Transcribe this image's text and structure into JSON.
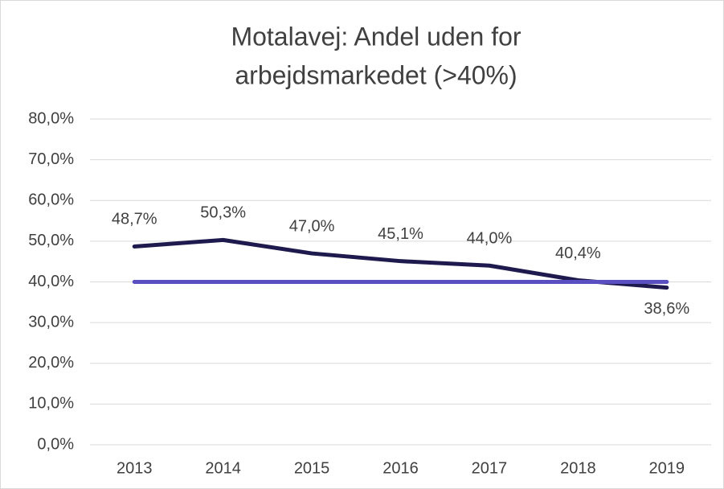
{
  "chart_data": {
    "type": "line",
    "title": [
      "Motalavej: Andel uden for",
      "arbejdsmarkedet (>40%)"
    ],
    "categories": [
      "2013",
      "2014",
      "2015",
      "2016",
      "2017",
      "2018",
      "2019"
    ],
    "series": [
      {
        "color": "#1f1a4d",
        "values": [
          48.7,
          50.3,
          47.0,
          45.1,
          44.0,
          40.4,
          38.6
        ],
        "value_labels": [
          "48,7%",
          "50,3%",
          "47,0%",
          "45,1%",
          "44,0%",
          "40,4%",
          "38,6%"
        ]
      },
      {
        "color": "#5a4fc0",
        "values": [
          40,
          40,
          40,
          40,
          40,
          40,
          40
        ]
      }
    ],
    "ylim": [
      0,
      80
    ],
    "yticks": [
      {
        "value": 0,
        "label": "0,0%"
      },
      {
        "value": 10,
        "label": "10,0%"
      },
      {
        "value": 20,
        "label": "20,0%"
      },
      {
        "value": 30,
        "label": "30,0%"
      },
      {
        "value": 40,
        "label": "40,0%"
      },
      {
        "value": 50,
        "label": "50,0%"
      },
      {
        "value": 60,
        "label": "60,0%"
      },
      {
        "value": 70,
        "label": "70,0%"
      },
      {
        "value": 80,
        "label": "80,0%"
      }
    ],
    "grid": true
  }
}
